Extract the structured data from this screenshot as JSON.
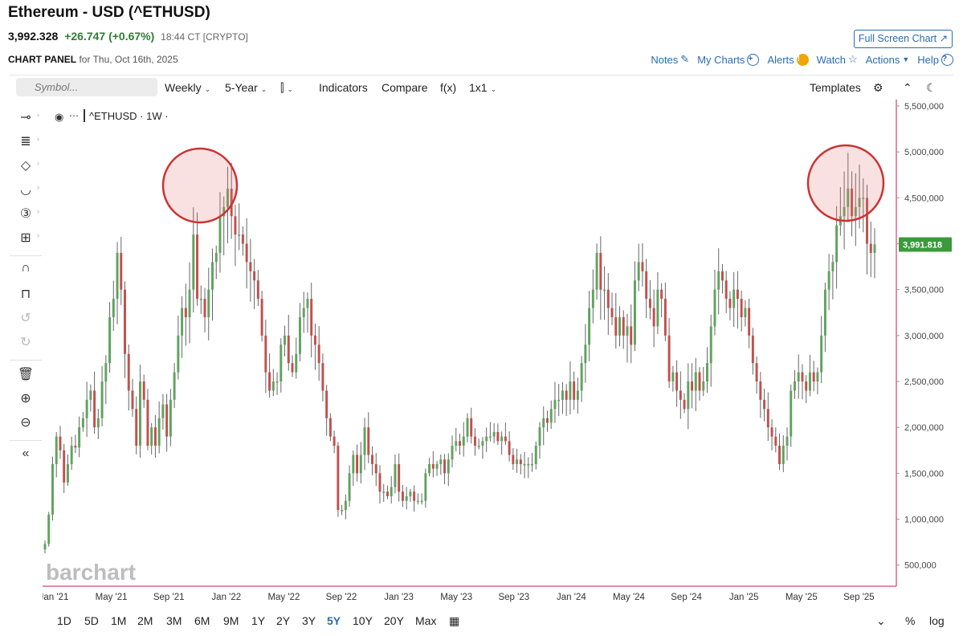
{
  "header": {
    "title": "Ethereum - USD (^ETHUSD)",
    "price": "3,992.328",
    "change": "+26.747 (+0.67%)",
    "time": "18:44 CT [CRYPTO]",
    "panel_label": "CHART PANEL",
    "panel_date": "for Thu, Oct 16th, 2025",
    "fullscreen": "Full Screen Chart ↗"
  },
  "actions": {
    "notes": "Notes",
    "mycharts": "My Charts",
    "alerts": "Alerts",
    "watch": "Watch",
    "actions": "Actions",
    "help": "Help"
  },
  "toolbar": {
    "search_placeholder": "Symbol...",
    "interval": "Weekly",
    "range": "5-Year",
    "indicators": "Indicators",
    "compare": "Compare",
    "fx": "f(x)",
    "layout": "1x1",
    "templates": "Templates"
  },
  "chart_data": {
    "type": "candlestick",
    "symbol_label": "^ETHUSD · 1W ·",
    "watermark": "barchart",
    "last_price_label": "3,991.818",
    "y_ticks": [
      "500,000",
      "1,000,000",
      "1,500,000",
      "2,000,000",
      "2,500,000",
      "3,000,000",
      "3,500,000",
      "4,000,000",
      "4,500,000",
      "5,000,000",
      "5,500,000"
    ],
    "x_ticks": [
      "Jan '21",
      "May '21",
      "Sep '21",
      "Jan '22",
      "May '22",
      "Sep '22",
      "Jan '23",
      "May '23",
      "Sep '23",
      "Jan '24",
      "May '24",
      "Sep '24",
      "Jan '25",
      "May '25",
      "Sep '25"
    ],
    "colors": {
      "up": "#5fa35f",
      "down": "#c0504d",
      "accent": "#c2185b",
      "highlight": "#cc3333"
    },
    "closes": [
      730,
      1050,
      1600,
      1900,
      1750,
      1400,
      1600,
      1800,
      1780,
      2000,
      2100,
      2300,
      2400,
      2000,
      2100,
      2500,
      2700,
      3200,
      3400,
      3900,
      3500,
      2800,
      2400,
      2200,
      1800,
      2500,
      2300,
      1800,
      2000,
      1800,
      2100,
      2250,
      1900,
      2300,
      2600,
      3000,
      3300,
      3200,
      3500,
      4100,
      3400,
      3400,
      3200,
      3500,
      3800,
      3900,
      4300,
      4400,
      4600,
      4300,
      4100,
      4100,
      4000,
      3800,
      3700,
      3600,
      3400,
      3000,
      2600,
      2400,
      2500,
      2500,
      2900,
      3000,
      2700,
      2600,
      2800,
      3200,
      3300,
      3400,
      3000,
      2900,
      2700,
      2400,
      2100,
      1900,
      1800,
      1100,
      1100,
      1200,
      1500,
      1700,
      1500,
      1700,
      2000,
      1700,
      1600,
      1500,
      1300,
      1300,
      1250,
      1350,
      1600,
      1300,
      1200,
      1250,
      1300,
      1200,
      1200,
      1200,
      1500,
      1600,
      1550,
      1600,
      1650,
      1500,
      1650,
      1800,
      1850,
      1800,
      1900,
      2100,
      1900,
      1800,
      1800,
      1850,
      1900,
      1900,
      1950,
      1850,
      1900,
      1850,
      1700,
      1600,
      1650,
      1600,
      1600,
      1600,
      1600,
      1800,
      2000,
      2100,
      2050,
      2200,
      2300,
      2300,
      2400,
      2300,
      2500,
      2300,
      2400,
      2700,
      2900,
      3300,
      3500,
      3900,
      3500,
      3500,
      3300,
      3200,
      3000,
      3200,
      3000,
      3100,
      2900,
      3600,
      3800,
      3700,
      3400,
      3300,
      3100,
      3500,
      3400,
      3000,
      2500,
      2600,
      2400,
      2300,
      2200,
      2500,
      2400,
      2600,
      2400,
      2500,
      2700,
      3100,
      3500,
      3700,
      3600,
      3400,
      3300,
      3500,
      3400,
      3200,
      3300,
      3000,
      2700,
      2500,
      2300,
      2200,
      2000,
      1900,
      1800,
      1600,
      1800,
      1900,
      2400,
      2500,
      2600,
      2500,
      2400,
      2600,
      2500,
      2600,
      3000,
      3500,
      3700,
      3800,
      4200,
      4300,
      4400,
      4600,
      4300,
      4400,
      4500,
      4500,
      4000,
      3900,
      3992
    ]
  },
  "bottom": {
    "ranges": [
      "1D",
      "5D",
      "1M",
      "2M",
      "3M",
      "6M",
      "9M",
      "1Y",
      "2Y",
      "3Y",
      "5Y",
      "10Y",
      "20Y",
      "Max"
    ],
    "selected": "5Y",
    "percent": "%",
    "log": "log"
  }
}
